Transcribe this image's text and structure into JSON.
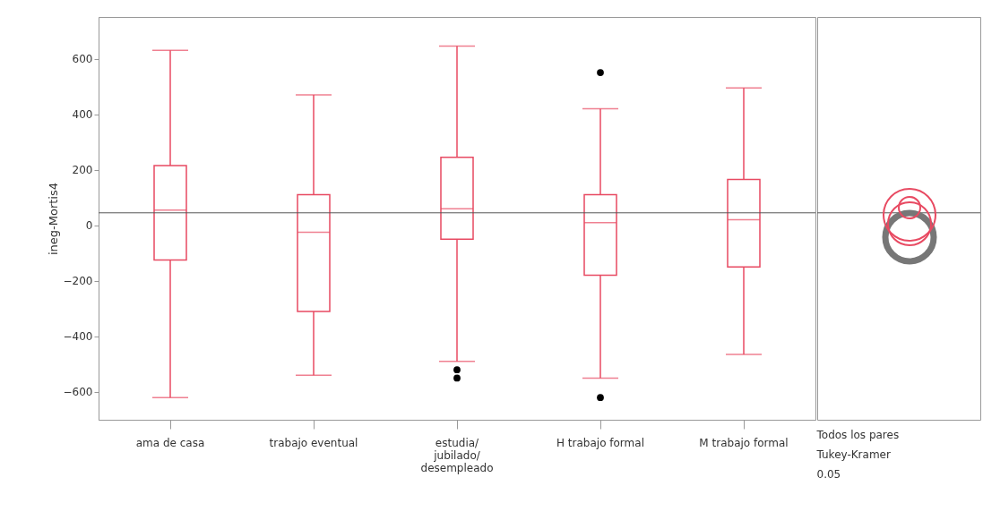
{
  "chart_data": {
    "type": "box",
    "ylabel": "ineg-Mortis4",
    "categories": [
      "ama de casa",
      "trabajo eventual",
      "estudia/ jubilado/ desempleado",
      "H trabajo formal",
      "M trabajo formal"
    ],
    "series": [
      {
        "color": "#e84a62",
        "boxes": [
          {
            "low": -620,
            "q1": -125,
            "median": 55,
            "q3": 215,
            "high": 630
          },
          {
            "low": -540,
            "q1": -310,
            "median": -25,
            "q3": 110,
            "high": 470
          },
          {
            "low": -490,
            "q1": -50,
            "median": 60,
            "q3": 245,
            "high": 645,
            "outliers": [
              -520,
              -550
            ]
          },
          {
            "low": -550,
            "q1": -180,
            "median": 10,
            "q3": 110,
            "high": 420,
            "outliers": [
              550,
              -620
            ]
          },
          {
            "low": -465,
            "q1": -150,
            "median": 20,
            "q3": 165,
            "high": 495
          }
        ]
      }
    ],
    "ylim": [
      -700,
      750
    ],
    "yticks": [
      -600,
      -400,
      -200,
      0,
      200,
      400,
      600
    ],
    "ref_lines": [
      {
        "axis": "y",
        "value": 45,
        "color": "#555555"
      }
    ],
    "annotations": [
      "Todos los pares",
      "Tukey-Kramer",
      "0.05"
    ]
  }
}
